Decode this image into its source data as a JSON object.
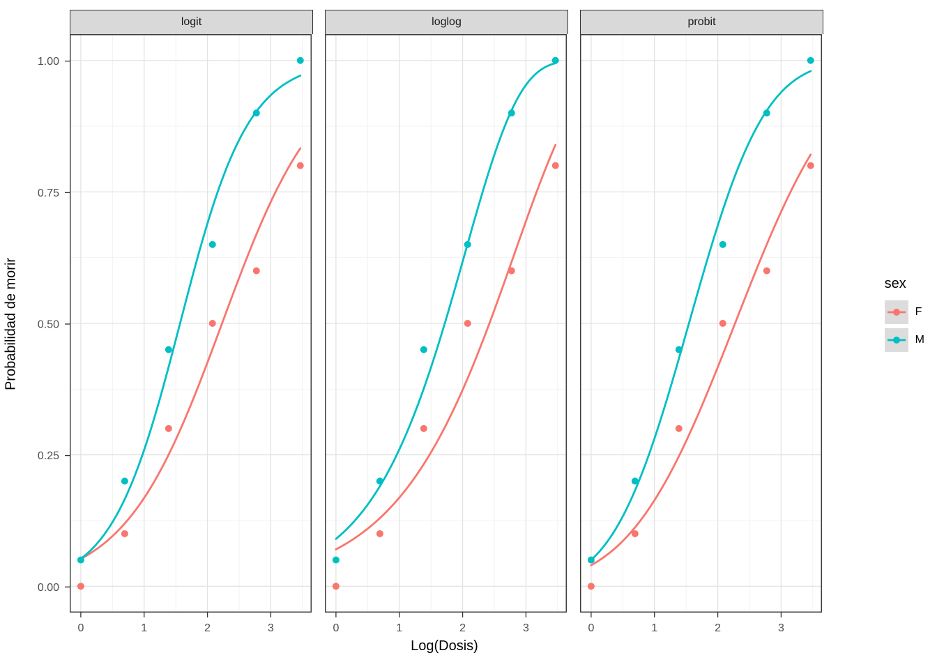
{
  "chart_data": {
    "type": "scatter",
    "title": "",
    "facets": [
      "logit",
      "loglog",
      "probit"
    ],
    "xlabel": "Log(Dosis)",
    "ylabel": "Probabilidad de morir",
    "x_ticks": [
      {
        "v": 0,
        "label": "0"
      },
      {
        "v": 1,
        "label": "1"
      },
      {
        "v": 2,
        "label": "2"
      },
      {
        "v": 3,
        "label": "3"
      }
    ],
    "y_ticks": [
      {
        "v": 0.0,
        "label": "0.00"
      },
      {
        "v": 0.25,
        "label": "0.25"
      },
      {
        "v": 0.5,
        "label": "0.50"
      },
      {
        "v": 0.75,
        "label": "0.75"
      },
      {
        "v": 1.0,
        "label": "1.00"
      }
    ],
    "xlim": [
      -0.175,
      3.645
    ],
    "ylim": [
      -0.05,
      1.05
    ],
    "grid": {
      "major": true,
      "minor": true
    },
    "x": [
      0,
      0.693,
      1.386,
      2.079,
      2.773,
      3.466
    ],
    "series": [
      {
        "name": "F",
        "color": "#F8766D",
        "values": [
          0.0,
          0.1,
          0.3,
          0.5,
          0.6,
          0.8
        ]
      },
      {
        "name": "M",
        "color": "#00BFC4",
        "values": [
          0.05,
          0.2,
          0.45,
          0.65,
          0.9,
          1.0
        ]
      }
    ],
    "fits": {
      "logit": {
        "F": {
          "a": -2.9,
          "b": 1.3
        },
        "M": {
          "a": -2.9,
          "b": 1.85
        }
      },
      "loglog": {
        "F": {
          "a": -2.62,
          "b": 0.93
        },
        "M": {
          "a": -2.36,
          "b": 1.16
        }
      },
      "probit": {
        "F": {
          "a": -1.75,
          "b": 0.77
        },
        "M": {
          "a": -1.645,
          "b": 1.065
        }
      }
    },
    "legend": {
      "title": "sex",
      "position": "right",
      "entries": [
        {
          "label": "F",
          "color": "#F8766D"
        },
        {
          "label": "M",
          "color": "#00BFC4"
        }
      ]
    },
    "colors": {
      "strip_bg": "#D9D9D9",
      "panel_border": "#333333",
      "grid_major": "#E3E3E3",
      "grid_minor": "#F1F1F1",
      "legend_key_bg": "#DCDCDC",
      "tick_text": "#4D4D4D",
      "tick_mark": "#333333"
    }
  }
}
